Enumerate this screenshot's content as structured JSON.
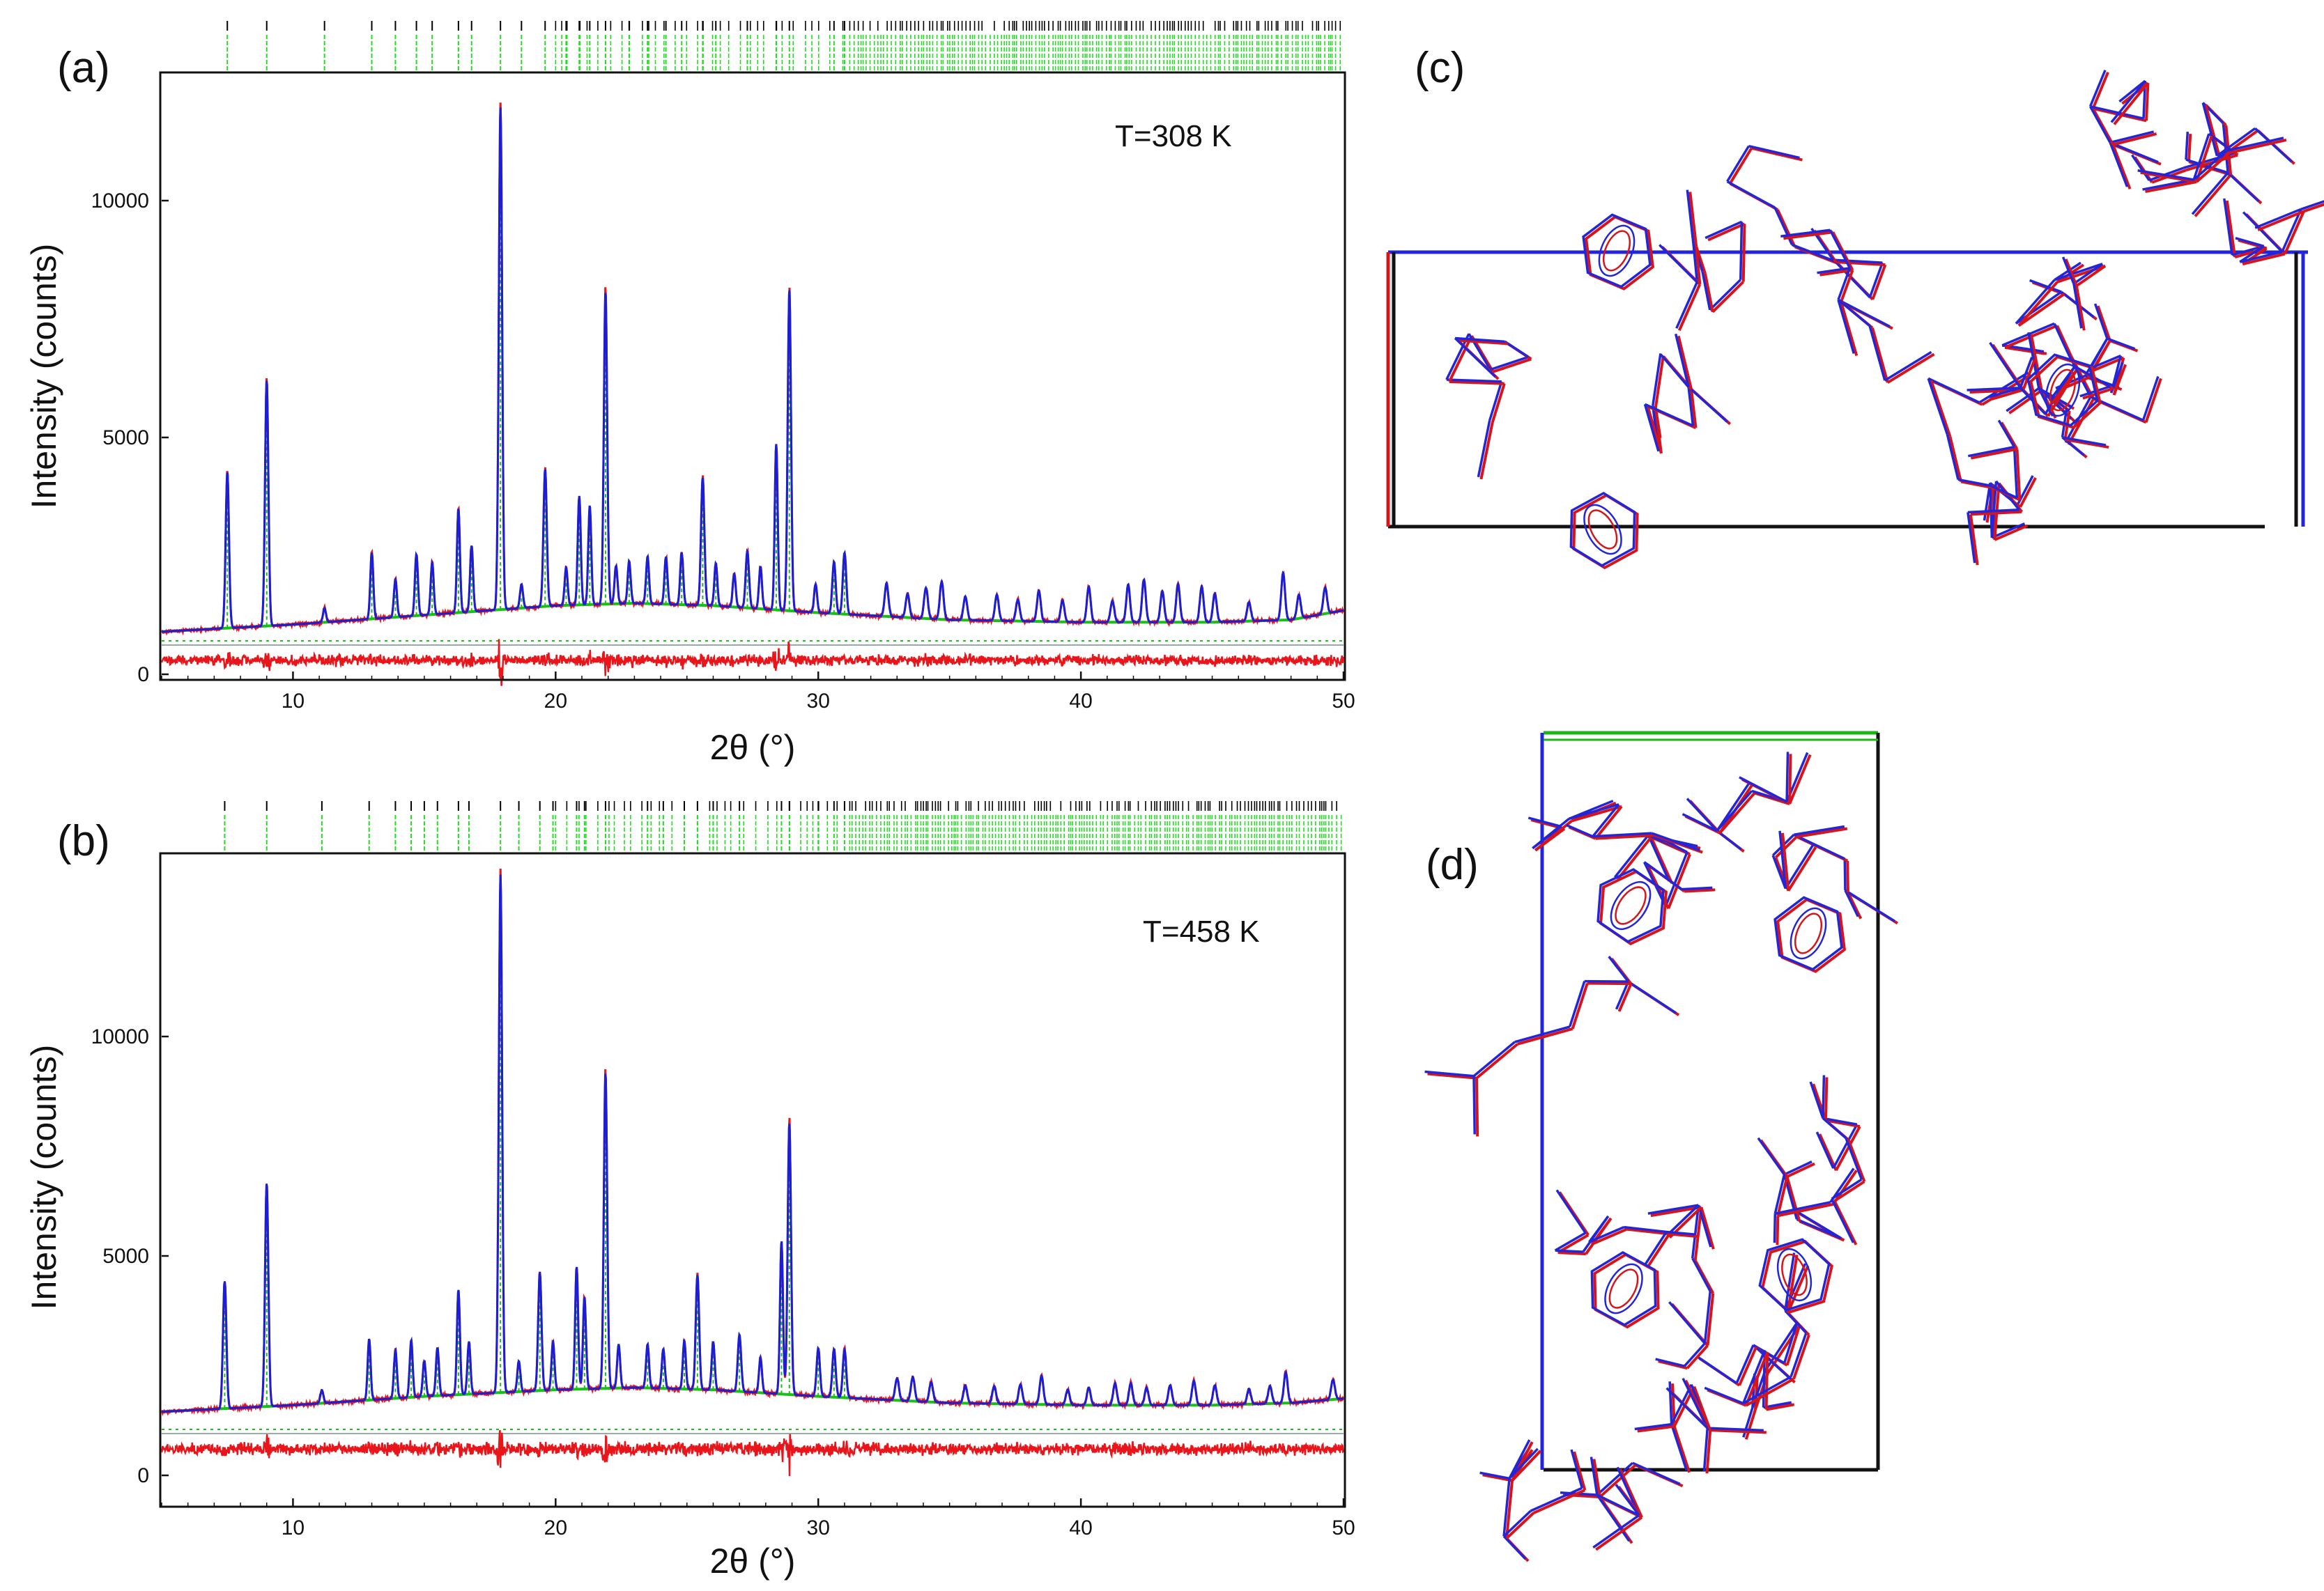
{
  "colors": {
    "observed": "#e8161b",
    "calculated": "#1a1fd6",
    "background": "#18c018",
    "difference": "#e8161b",
    "reflection_black": "#000000",
    "reflection_green": "#1fe01f",
    "axes": "#111111",
    "structure_red": "#d8141b",
    "structure_blue": "#2326d8",
    "cell_black": "#111111",
    "cell_green": "#1bb51b",
    "cell_red": "#d8141b"
  },
  "panels": {
    "a": {
      "label": "(a)",
      "temperature": "T=308 K"
    },
    "b": {
      "label": "(b)",
      "temperature": "T=458 K"
    },
    "c": {
      "label": "(c)"
    },
    "d": {
      "label": "(d)"
    }
  },
  "chart_data": [
    {
      "id": "a",
      "type": "line",
      "title": "(a)",
      "annotation": "T=308 K",
      "xlabel": "2θ (°)",
      "ylabel": "Intensity (counts)",
      "xlim": [
        5,
        50
      ],
      "ylim": [
        -250,
        12500
      ],
      "xticks": [
        10,
        20,
        30,
        40,
        50
      ],
      "yticks": [
        0,
        5000,
        10000
      ],
      "grid": false,
      "baseline": [
        [
          5,
          900
        ],
        [
          10,
          1050
        ],
        [
          15,
          1250
        ],
        [
          20,
          1450
        ],
        [
          23,
          1500
        ],
        [
          26,
          1450
        ],
        [
          30,
          1300
        ],
        [
          35,
          1150
        ],
        [
          40,
          1100
        ],
        [
          45,
          1100
        ],
        [
          48,
          1150
        ],
        [
          50,
          1350
        ]
      ],
      "peaks": [
        [
          7.5,
          3300,
          0.09
        ],
        [
          9.0,
          5200,
          0.09
        ],
        [
          11.2,
          300,
          0.08
        ],
        [
          13.0,
          1400,
          0.08
        ],
        [
          13.9,
          800,
          0.08
        ],
        [
          14.7,
          1300,
          0.08
        ],
        [
          15.3,
          1100,
          0.08
        ],
        [
          16.3,
          2200,
          0.08
        ],
        [
          16.8,
          1400,
          0.08
        ],
        [
          17.9,
          10600,
          0.09
        ],
        [
          18.7,
          500,
          0.08
        ],
        [
          19.6,
          2900,
          0.09
        ],
        [
          20.4,
          800,
          0.08
        ],
        [
          20.9,
          2300,
          0.08
        ],
        [
          21.3,
          2100,
          0.08
        ],
        [
          21.9,
          6600,
          0.09
        ],
        [
          22.3,
          800,
          0.08
        ],
        [
          22.8,
          900,
          0.08
        ],
        [
          23.5,
          1000,
          0.08
        ],
        [
          24.2,
          1000,
          0.08
        ],
        [
          24.8,
          1100,
          0.08
        ],
        [
          25.6,
          2700,
          0.09
        ],
        [
          26.1,
          900,
          0.08
        ],
        [
          26.8,
          700,
          0.08
        ],
        [
          27.3,
          1200,
          0.09
        ],
        [
          27.8,
          900,
          0.08
        ],
        [
          28.4,
          3500,
          0.08
        ],
        [
          28.9,
          6800,
          0.09
        ],
        [
          29.9,
          600,
          0.08
        ],
        [
          30.6,
          1100,
          0.09
        ],
        [
          31.0,
          1300,
          0.09
        ],
        [
          32.6,
          700,
          0.1
        ],
        [
          33.4,
          500,
          0.1
        ],
        [
          34.1,
          650,
          0.1
        ],
        [
          34.7,
          800,
          0.1
        ],
        [
          35.6,
          500,
          0.1
        ],
        [
          36.8,
          550,
          0.1
        ],
        [
          37.6,
          450,
          0.1
        ],
        [
          38.4,
          650,
          0.1
        ],
        [
          39.3,
          450,
          0.1
        ],
        [
          40.3,
          750,
          0.1
        ],
        [
          41.2,
          450,
          0.1
        ],
        [
          41.8,
          800,
          0.1
        ],
        [
          42.4,
          900,
          0.1
        ],
        [
          43.1,
          650,
          0.1
        ],
        [
          43.7,
          800,
          0.1
        ],
        [
          44.6,
          750,
          0.1
        ],
        [
          45.1,
          600,
          0.1
        ],
        [
          46.4,
          400,
          0.1
        ],
        [
          47.7,
          1000,
          0.1
        ],
        [
          48.3,
          500,
          0.1
        ],
        [
          49.3,
          550,
          0.1
        ]
      ],
      "reflections_first_phase_approx_deg": [
        7.5,
        9.0,
        11.2,
        13.0,
        13.9,
        14.7,
        15.3,
        16.3,
        16.8,
        17.9,
        18.7,
        19.6,
        20.4,
        20.9,
        21.3,
        21.9,
        22.8,
        23.5,
        24.2,
        24.8,
        25.6,
        26.1,
        27.3,
        28.4,
        28.9,
        30.6,
        31.0
      ]
    },
    {
      "id": "b",
      "type": "line",
      "title": "(b)",
      "annotation": "T=458 K",
      "xlabel": "2θ (°)",
      "ylabel": "Intensity (counts)",
      "xlim": [
        5,
        50
      ],
      "ylim": [
        -150,
        14000
      ],
      "xticks": [
        10,
        20,
        30,
        40,
        50
      ],
      "yticks": [
        0,
        5000,
        10000
      ],
      "grid": false,
      "baseline": [
        [
          5,
          1450
        ],
        [
          10,
          1600
        ],
        [
          15,
          1800
        ],
        [
          20,
          1950
        ],
        [
          23,
          2000
        ],
        [
          26,
          1950
        ],
        [
          30,
          1800
        ],
        [
          35,
          1650
        ],
        [
          40,
          1600
        ],
        [
          45,
          1600
        ],
        [
          48,
          1650
        ],
        [
          50,
          1750
        ]
      ],
      "peaks": [
        [
          7.4,
          2900,
          0.09
        ],
        [
          9.0,
          5100,
          0.09
        ],
        [
          11.1,
          300,
          0.08
        ],
        [
          12.9,
          1400,
          0.08
        ],
        [
          13.9,
          1100,
          0.08
        ],
        [
          14.5,
          1300,
          0.08
        ],
        [
          15.0,
          800,
          0.08
        ],
        [
          15.5,
          1100,
          0.08
        ],
        [
          16.3,
          2400,
          0.08
        ],
        [
          16.7,
          1200,
          0.08
        ],
        [
          17.9,
          11800,
          0.09
        ],
        [
          18.6,
          700,
          0.08
        ],
        [
          19.4,
          2700,
          0.09
        ],
        [
          19.9,
          1100,
          0.08
        ],
        [
          20.8,
          2800,
          0.08
        ],
        [
          21.1,
          2100,
          0.08
        ],
        [
          21.9,
          7200,
          0.09
        ],
        [
          22.4,
          1000,
          0.08
        ],
        [
          23.5,
          1000,
          0.08
        ],
        [
          24.1,
          900,
          0.08
        ],
        [
          24.9,
          1100,
          0.08
        ],
        [
          25.4,
          2600,
          0.09
        ],
        [
          26.0,
          1100,
          0.08
        ],
        [
          27.0,
          1300,
          0.09
        ],
        [
          27.8,
          800,
          0.08
        ],
        [
          28.6,
          3500,
          0.08
        ],
        [
          28.9,
          6200,
          0.09
        ],
        [
          30.0,
          1100,
          0.09
        ],
        [
          30.6,
          1100,
          0.09
        ],
        [
          31.0,
          1100,
          0.09
        ],
        [
          33.0,
          500,
          0.1
        ],
        [
          33.6,
          550,
          0.1
        ],
        [
          34.3,
          450,
          0.1
        ],
        [
          35.6,
          400,
          0.1
        ],
        [
          36.7,
          400,
          0.1
        ],
        [
          37.7,
          450,
          0.1
        ],
        [
          38.5,
          650,
          0.1
        ],
        [
          39.5,
          350,
          0.1
        ],
        [
          40.3,
          400,
          0.1
        ],
        [
          41.3,
          500,
          0.1
        ],
        [
          41.9,
          500,
          0.1
        ],
        [
          42.5,
          400,
          0.1
        ],
        [
          43.4,
          450,
          0.1
        ],
        [
          44.3,
          550,
          0.1
        ],
        [
          45.1,
          450,
          0.1
        ],
        [
          46.4,
          350,
          0.1
        ],
        [
          47.2,
          400,
          0.1
        ],
        [
          47.8,
          700,
          0.1
        ],
        [
          49.6,
          450,
          0.1
        ]
      ],
      "reflections_first_phase_approx_deg": [
        7.4,
        9.0,
        11.1,
        12.9,
        13.9,
        14.5,
        15.0,
        15.5,
        16.3,
        16.7,
        17.9,
        18.6,
        19.4,
        19.9,
        20.8,
        21.1,
        21.9,
        23.5,
        24.1,
        24.9,
        25.4,
        26.0,
        27.0,
        28.6,
        28.9,
        30.0,
        30.6,
        31.0
      ]
    }
  ]
}
